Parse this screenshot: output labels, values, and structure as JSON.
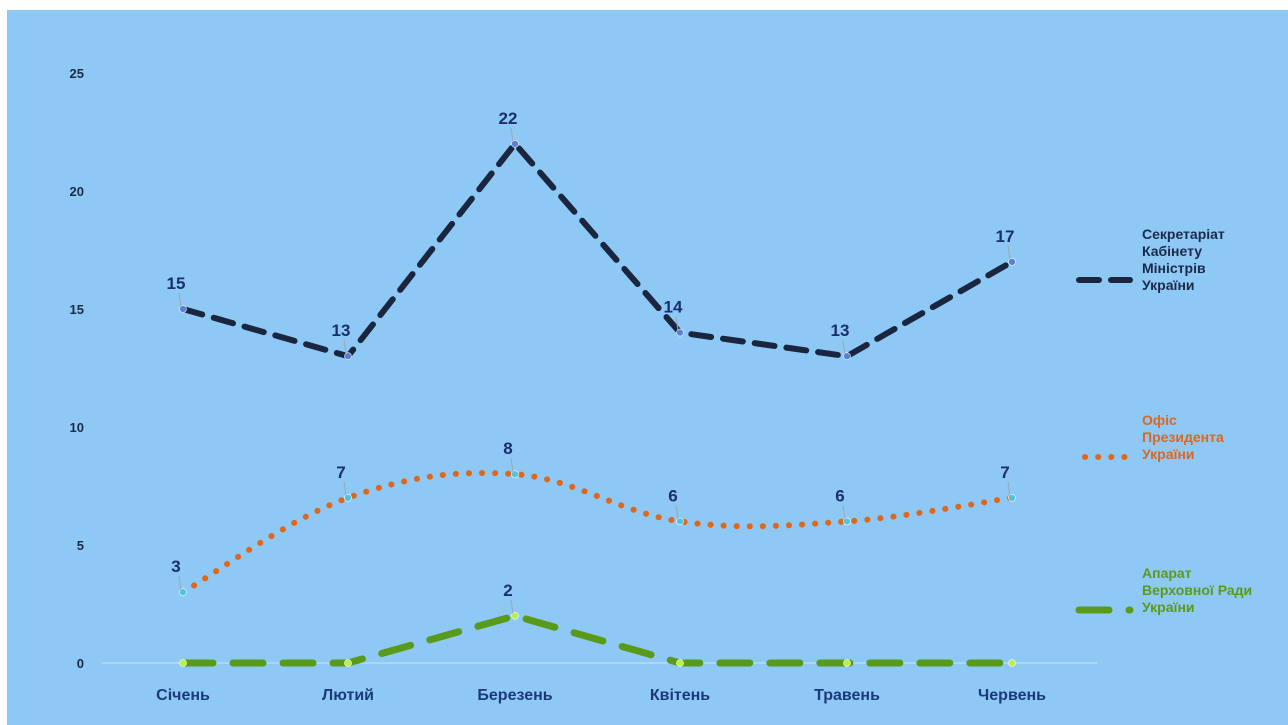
{
  "chart_data": {
    "type": "line",
    "categories": [
      "Січень",
      "Лютий",
      "Березень",
      "Квітень",
      "Травень",
      "Червень"
    ],
    "ylim": [
      0,
      25
    ],
    "yticks": [
      0,
      5,
      10,
      15,
      20,
      25
    ],
    "grid": false,
    "legend_position": "right",
    "series": [
      {
        "name": "Секретаріат Кабінету Міністрів України",
        "name_lines": [
          "Секретаріат",
          "Кабінету",
          "Міністрів",
          "України"
        ],
        "values": [
          15,
          13,
          22,
          14,
          13,
          17
        ],
        "color": "#1a2540",
        "marker_color": "#5b7fd6",
        "style": "dashed",
        "smooth": false
      },
      {
        "name": "Офіс Президента України",
        "name_lines": [
          "Офіс",
          "Президента",
          "України"
        ],
        "values": [
          3,
          7,
          8,
          6,
          6,
          7
        ],
        "color": "#e0661b",
        "marker_color": "#4fc3dd",
        "style": "dotted",
        "smooth": true
      },
      {
        "name": "Апарат Верховної Ради України",
        "name_lines": [
          "Апарат",
          "Верховної Ради",
          "України"
        ],
        "values": [
          0,
          0,
          2,
          0,
          0,
          0
        ],
        "color": "#5a9a1a",
        "marker_color": "#b8f04a",
        "style": "long-dashed",
        "smooth": false
      }
    ],
    "data_labels": {
      "series_0": [
        "15",
        "13",
        "22",
        "14",
        "13",
        "17"
      ],
      "series_1": [
        "3",
        "7",
        "8",
        "6",
        "6",
        "7"
      ],
      "series_2": [
        "",
        "",
        "2",
        "",
        "",
        ""
      ]
    },
    "legend_text_colors": [
      "#1c2a4a",
      "#e0661b",
      "#5a9a1a"
    ]
  }
}
